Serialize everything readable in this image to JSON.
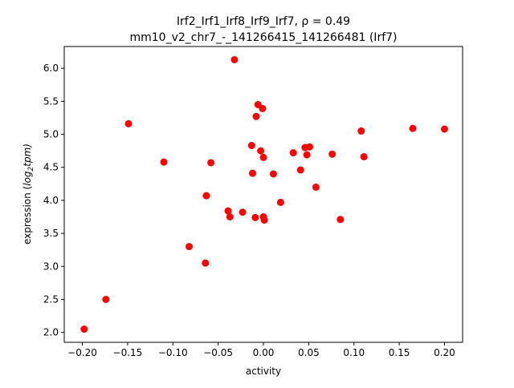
{
  "chart_data": {
    "type": "scatter",
    "title_line1": "Irf2_Irf1_Irf8_Irf9_Irf7, ρ = 0.49",
    "title_line2": "mm10_v2_chr7_-_141266415_141266481 (Irf7)",
    "xlabel": "activity",
    "ylabel_prefix": "expression (",
    "ylabel_log": "log",
    "ylabel_sub": "2",
    "ylabel_suffix": "tpm)",
    "xlim": [
      -0.22,
      0.22
    ],
    "ylim": [
      1.85,
      6.33
    ],
    "xticks": [
      -0.2,
      -0.15,
      -0.1,
      -0.05,
      0.0,
      0.05,
      0.1,
      0.15,
      0.2
    ],
    "xtick_labels": [
      "−0.20",
      "−0.15",
      "−0.10",
      "−0.05",
      "0.00",
      "0.05",
      "0.10",
      "0.15",
      "0.20"
    ],
    "yticks": [
      2.0,
      2.5,
      3.0,
      3.5,
      4.0,
      4.5,
      5.0,
      5.5,
      6.0
    ],
    "ytick_labels": [
      "2.0",
      "2.5",
      "3.0",
      "3.5",
      "4.0",
      "4.5",
      "5.0",
      "5.5",
      "6.0"
    ],
    "grid": false,
    "point_color": "#ff0000",
    "points": [
      [
        -0.198,
        2.05
      ],
      [
        -0.174,
        2.5
      ],
      [
        -0.149,
        5.16
      ],
      [
        -0.11,
        4.58
      ],
      [
        -0.082,
        3.3
      ],
      [
        -0.064,
        3.05
      ],
      [
        -0.063,
        4.07
      ],
      [
        -0.058,
        4.57
      ],
      [
        -0.039,
        3.84
      ],
      [
        -0.037,
        3.75
      ],
      [
        -0.032,
        6.13
      ],
      [
        -0.023,
        3.82
      ],
      [
        -0.013,
        4.83
      ],
      [
        -0.012,
        4.41
      ],
      [
        -0.009,
        3.74
      ],
      [
        -0.008,
        5.27
      ],
      [
        -0.006,
        5.45
      ],
      [
        -0.003,
        4.75
      ],
      [
        -0.001,
        5.39
      ],
      [
        0.0,
        4.65
      ],
      [
        0.0,
        3.75
      ],
      [
        0.001,
        3.7
      ],
      [
        0.011,
        4.4
      ],
      [
        0.019,
        3.97
      ],
      [
        0.033,
        4.72
      ],
      [
        0.041,
        4.46
      ],
      [
        0.046,
        4.8
      ],
      [
        0.048,
        4.69
      ],
      [
        0.051,
        4.81
      ],
      [
        0.058,
        4.2
      ],
      [
        0.076,
        4.7
      ],
      [
        0.085,
        3.71
      ],
      [
        0.108,
        5.05
      ],
      [
        0.111,
        4.66
      ],
      [
        0.165,
        5.09
      ],
      [
        0.2,
        5.08
      ]
    ]
  }
}
